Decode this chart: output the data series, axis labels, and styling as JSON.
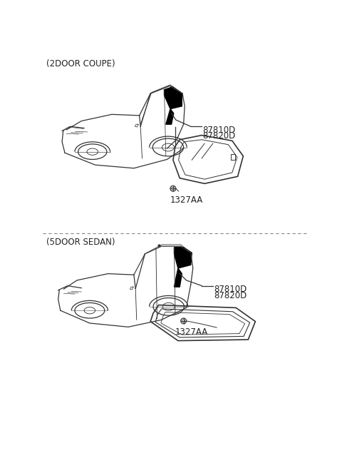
{
  "bg_color": "#ffffff",
  "line_color": "#333333",
  "text_color": "#222222",
  "dashed_color": "#888888",
  "section1_label": "(2DOOR COUPE)",
  "section2_label": "(5DOOR SEDAN)",
  "label_87810D": "87810D",
  "label_87820D": "87820D",
  "label_1327AA": "1327AA",
  "font_size_label": 8.5,
  "font_size_section": 8.5
}
